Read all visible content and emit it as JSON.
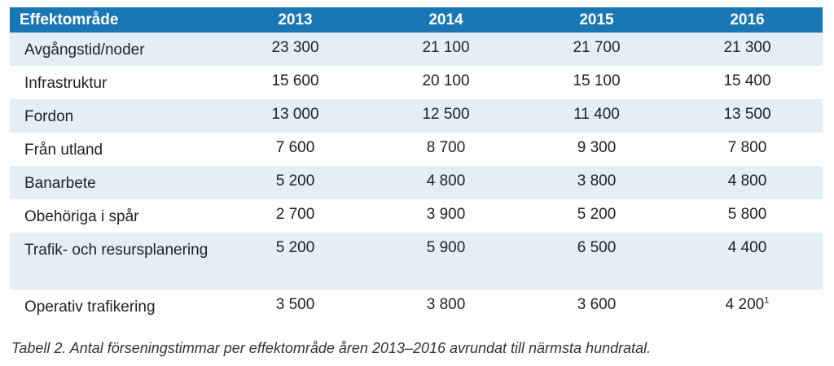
{
  "table": {
    "headers": [
      "Effektområde",
      "2013",
      "2014",
      "2015",
      "2016"
    ],
    "rows": [
      {
        "label": "Avgångstid/noder",
        "values": [
          "23 300",
          "21 100",
          "21 700",
          "21 300"
        ]
      },
      {
        "label": "Infrastruktur",
        "values": [
          "15 600",
          "20 100",
          "15 100",
          "15 400"
        ]
      },
      {
        "label": "Fordon",
        "values": [
          "13 000",
          "12 500",
          "11 400",
          "13 500"
        ]
      },
      {
        "label": "Från utland",
        "values": [
          "7 600",
          "8 700",
          "9 300",
          "7 800"
        ]
      },
      {
        "label": "Banarbete",
        "values": [
          "5 200",
          "4 800",
          "3 800",
          "4 800"
        ]
      },
      {
        "label": "Obehöriga i spår",
        "values": [
          "2 700",
          "3 900",
          "5 200",
          "5 800"
        ]
      },
      {
        "label": "Trafik- och resursplanering",
        "values": [
          "5 200",
          "5 900",
          "6 500",
          "4 400"
        ]
      },
      {
        "label": "Operativ trafikering",
        "values": [
          "3 500",
          "3 800",
          "3 600",
          "4 200"
        ],
        "footnote": "1"
      }
    ]
  },
  "caption": "Tabell 2. Antal förseningstimmar per effektområde åren 2013–2016 avrundat till närmsta hundratal.",
  "colors": {
    "header_bg": "#1a77b6",
    "stripe": "#e4eef7"
  }
}
